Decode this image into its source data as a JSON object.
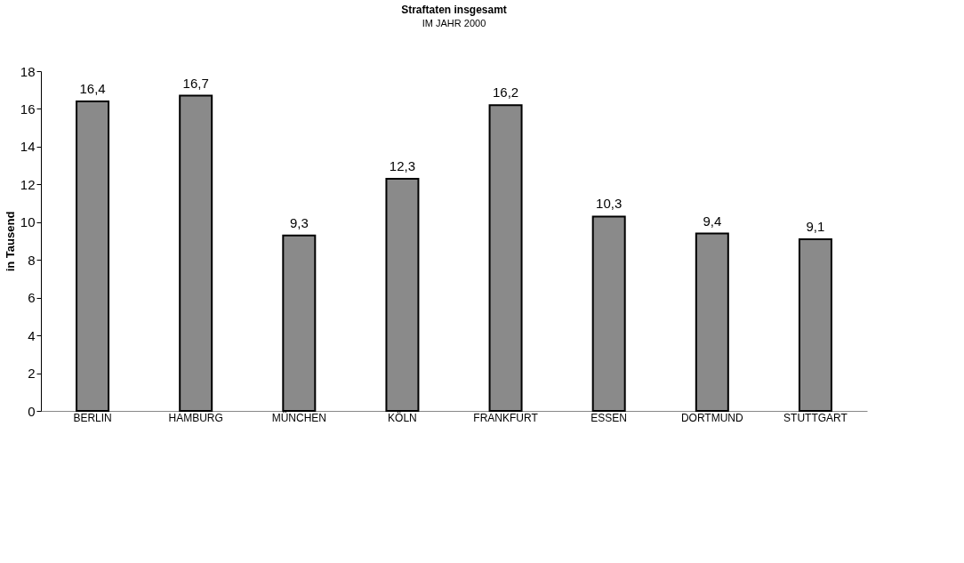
{
  "chart_data": {
    "type": "bar",
    "title": "Straftaten insgesamt",
    "subtitle": "IM JAHR 2000",
    "ylabel": "in Tausend",
    "categories": [
      "BERLIN",
      "HAMBURG",
      "MÜNCHEN",
      "KÖLN",
      "FRANKFURT",
      "ESSEN",
      "DORTMUND",
      "STUTTGART"
    ],
    "values": [
      16.4,
      16.7,
      9.3,
      12.3,
      16.2,
      10.3,
      9.4,
      9.1
    ],
    "value_labels": [
      "16,4",
      "16,7",
      "9,3",
      "12,3",
      "16,2",
      "10,3",
      "9,4",
      "9,1"
    ],
    "color": "#8a8a8a",
    "ylim": [
      0,
      18
    ],
    "yticks": [
      0,
      2,
      4,
      6,
      8,
      10,
      12,
      14,
      16,
      18
    ],
    "grid": false
  }
}
